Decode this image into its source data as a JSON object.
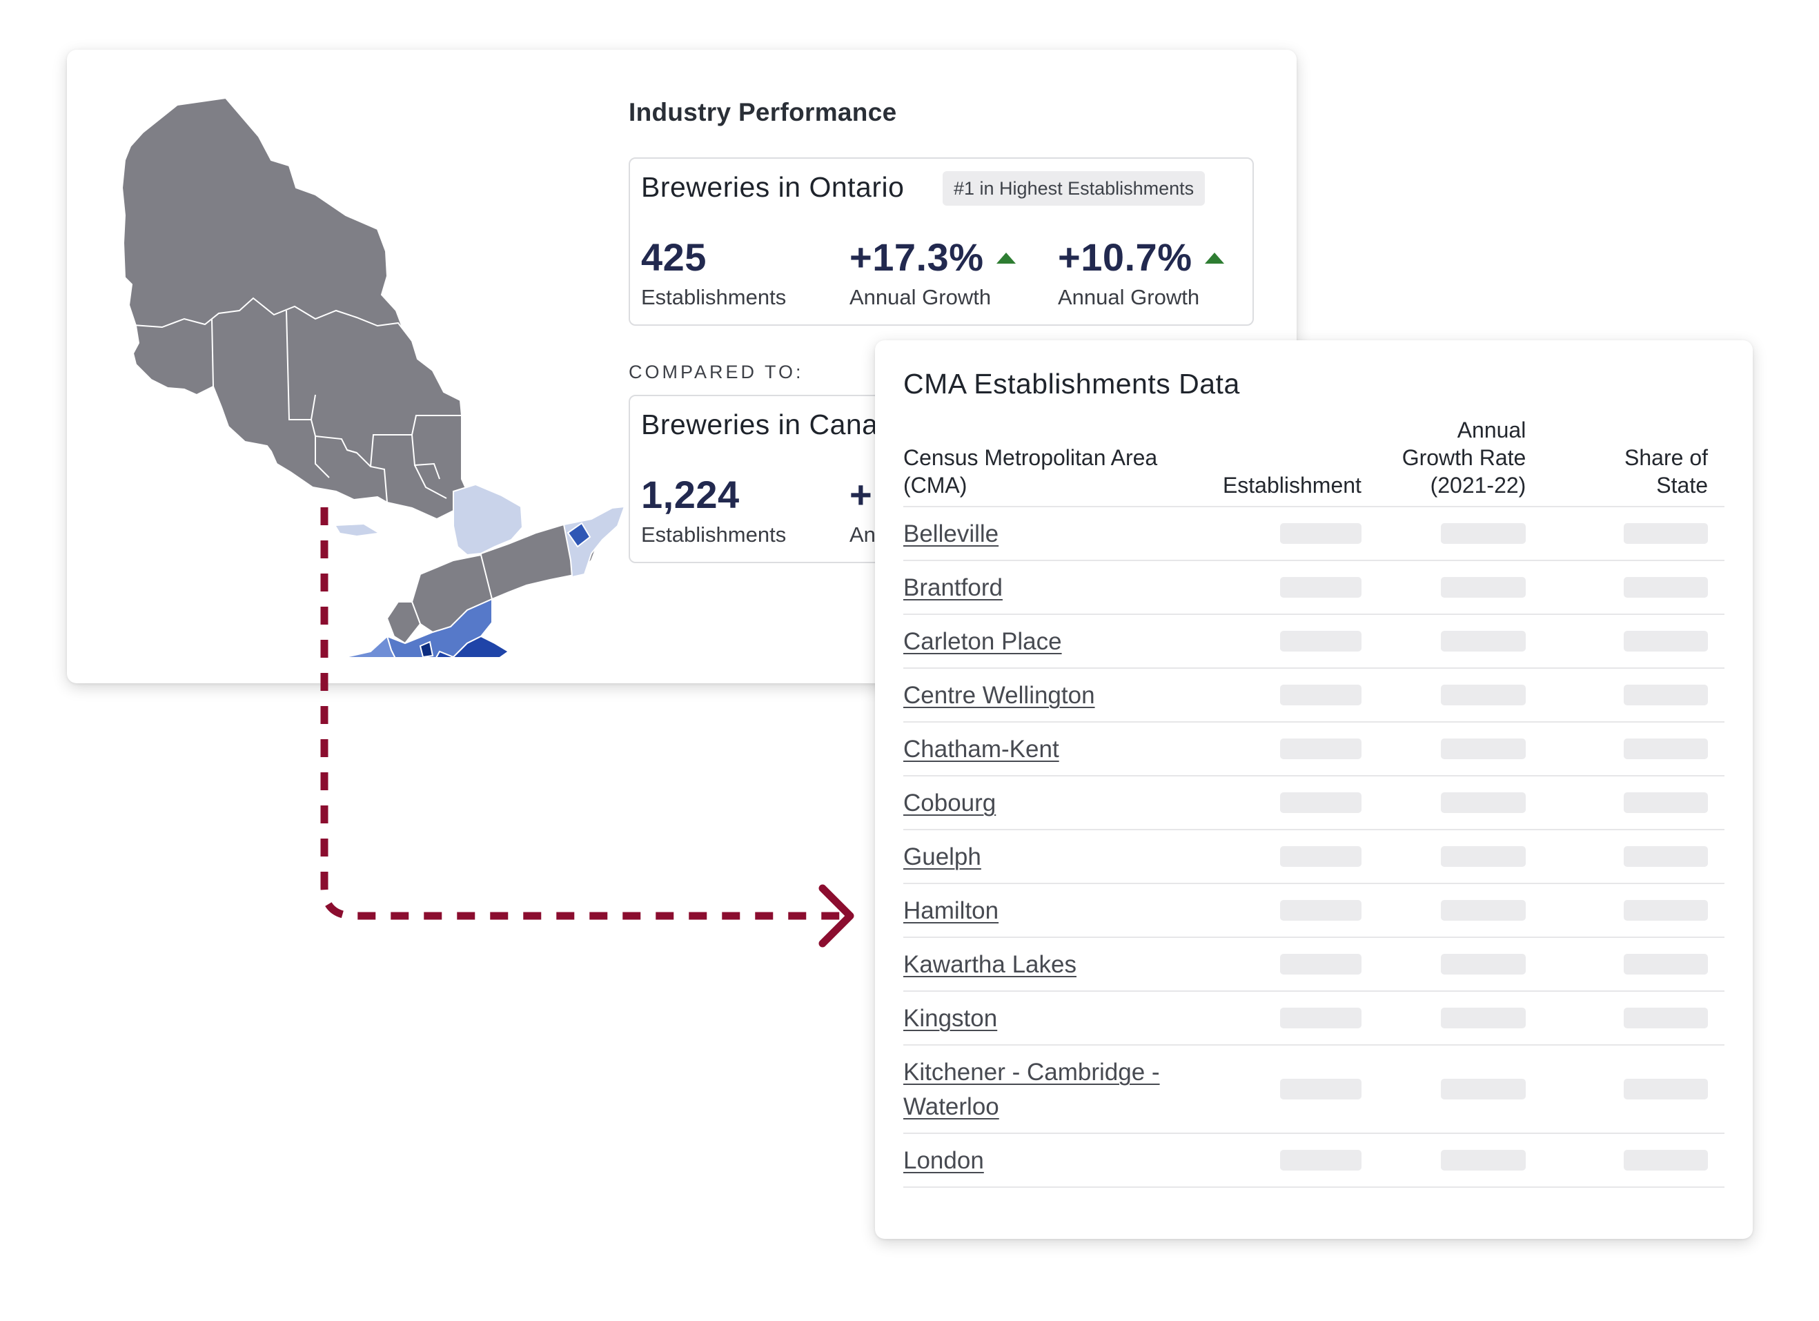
{
  "industry_performance": {
    "title": "Industry Performance",
    "compared_label": "COMPARED TO:",
    "primary": {
      "title": "Breweries in Ontario",
      "rank_badge": "#1 in Highest Establishments",
      "stats": [
        {
          "value": "425",
          "label": "Establishments",
          "trend": null
        },
        {
          "value": "+17.3%",
          "label": "Annual Growth",
          "trend": "up"
        },
        {
          "value": "+10.7%",
          "label": "Annual Growth",
          "trend": "up"
        }
      ]
    },
    "comparison": {
      "title_visible": "Breweries in Cana",
      "stats": [
        {
          "value": "1,224",
          "label": "Establishments"
        },
        {
          "value": "+",
          "label": "An"
        }
      ]
    }
  },
  "cma_table": {
    "title": "CMA Establishments Data",
    "columns": [
      "Census Metropolitan Area (CMA)",
      "Establishment",
      "Annual Growth Rate (2021-22)",
      "Share of State"
    ],
    "rows": [
      "Belleville",
      "Brantford",
      "Carleton Place",
      "Centre Wellington",
      "Chatham-Kent",
      "Cobourg",
      "Guelph",
      "Hamilton",
      "Kawartha Lakes",
      "Kingston",
      "Kitchener - Cambridge - Waterloo",
      "London"
    ]
  },
  "colors": {
    "value_navy": "#22294f",
    "trend_up": "#2e7d32",
    "map_gray": "#7f7f86",
    "map_blue_dark": "#1f44a8",
    "map_blue_mid": "#5679c9",
    "map_blue_light": "#c9d3ea",
    "arrow_maroon": "#8b0d2f"
  },
  "icons": {
    "trend": "triangle-up-icon",
    "connector": "dashed-arrow-icon"
  }
}
